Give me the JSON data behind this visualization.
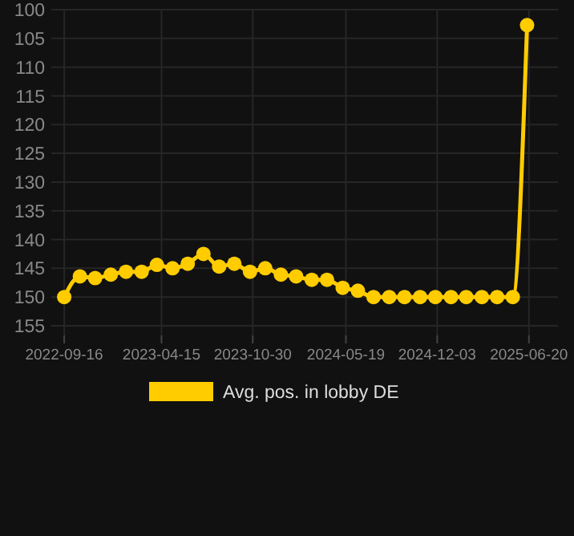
{
  "chart_data": {
    "type": "line",
    "x": [
      "2022-09-16",
      "2022-10-20",
      "2022-11-22",
      "2022-12-26",
      "2023-01-28",
      "2023-03-03",
      "2023-04-05",
      "2023-05-09",
      "2023-06-11",
      "2023-07-15",
      "2023-08-18",
      "2023-09-20",
      "2023-10-24",
      "2023-11-26",
      "2023-12-30",
      "2024-02-01",
      "2024-03-06",
      "2024-04-08",
      "2024-05-12",
      "2024-06-14",
      "2024-07-18",
      "2024-08-21",
      "2024-09-23",
      "2024-10-27",
      "2024-11-29",
      "2025-01-02",
      "2025-02-04",
      "2025-03-10",
      "2025-04-12",
      "2025-05-16",
      "2025-06-16"
    ],
    "series": [
      {
        "name": "Avg. pos. in lobby DE",
        "color": "#ffcc00",
        "values": [
          150,
          146.4,
          146.7,
          146.1,
          145.6,
          145.6,
          144.4,
          145,
          144.2,
          142.5,
          144.7,
          144.2,
          145.6,
          145,
          146.1,
          146.4,
          147,
          147,
          148.4,
          148.9,
          150,
          150,
          150,
          150,
          150,
          150,
          150,
          150,
          150,
          150,
          102.7
        ]
      }
    ],
    "xlim": [
      "2022-08-19",
      "2025-08-22"
    ],
    "xticks": [
      "2022-09-16",
      "2023-04-15",
      "2023-10-30",
      "2024-05-19",
      "2024-12-03",
      "2025-06-20"
    ],
    "ylim": [
      155,
      100
    ],
    "yticks": [
      100,
      105,
      110,
      115,
      120,
      125,
      130,
      135,
      140,
      145,
      150,
      155
    ],
    "grid": true,
    "legend": "bottom",
    "marker": "circle",
    "line_style": "solid"
  }
}
